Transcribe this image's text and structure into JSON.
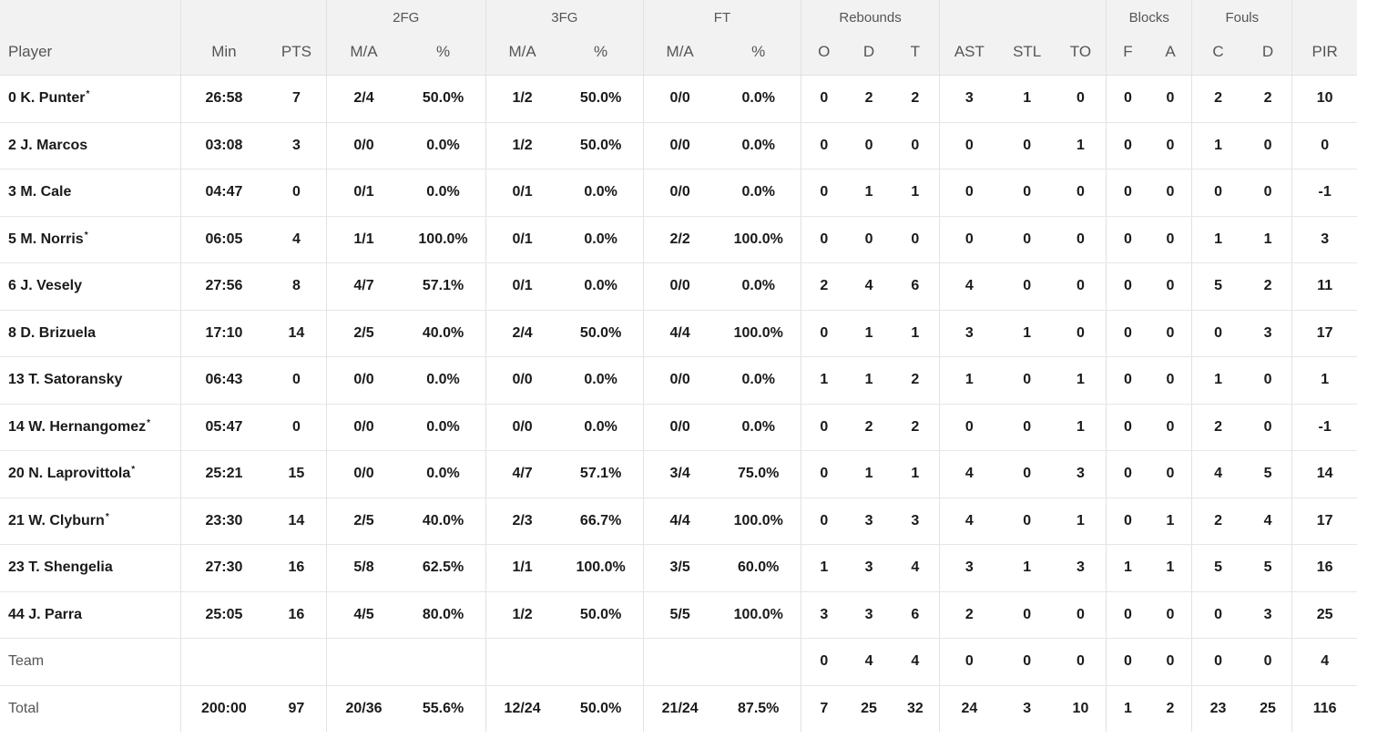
{
  "header": {
    "groups": {
      "fg2": "2FG",
      "fg3": "3FG",
      "ft": "FT",
      "rebounds": "Rebounds",
      "blocks": "Blocks",
      "fouls": "Fouls"
    },
    "columns": [
      "Player",
      "Min",
      "PTS",
      "M/A",
      "%",
      "M/A",
      "%",
      "M/A",
      "%",
      "O",
      "D",
      "T",
      "AST",
      "STL",
      "TO",
      "F",
      "A",
      "C",
      "D",
      "PIR"
    ]
  },
  "starter_mark": "*",
  "rows": [
    {
      "num": "0",
      "name": "K. Punter",
      "starter": true,
      "cells": [
        "26:58",
        "7",
        "2/4",
        "50.0%",
        "1/2",
        "50.0%",
        "0/0",
        "0.0%",
        "0",
        "2",
        "2",
        "3",
        "1",
        "0",
        "0",
        "0",
        "2",
        "2",
        "10"
      ]
    },
    {
      "num": "2",
      "name": "J. Marcos",
      "starter": false,
      "cells": [
        "03:08",
        "3",
        "0/0",
        "0.0%",
        "1/2",
        "50.0%",
        "0/0",
        "0.0%",
        "0",
        "0",
        "0",
        "0",
        "0",
        "1",
        "0",
        "0",
        "1",
        "0",
        "0"
      ]
    },
    {
      "num": "3",
      "name": "M. Cale",
      "starter": false,
      "cells": [
        "04:47",
        "0",
        "0/1",
        "0.0%",
        "0/1",
        "0.0%",
        "0/0",
        "0.0%",
        "0",
        "1",
        "1",
        "0",
        "0",
        "0",
        "0",
        "0",
        "0",
        "0",
        "-1"
      ]
    },
    {
      "num": "5",
      "name": "M. Norris",
      "starter": true,
      "cells": [
        "06:05",
        "4",
        "1/1",
        "100.0%",
        "0/1",
        "0.0%",
        "2/2",
        "100.0%",
        "0",
        "0",
        "0",
        "0",
        "0",
        "0",
        "0",
        "0",
        "1",
        "1",
        "3"
      ]
    },
    {
      "num": "6",
      "name": "J. Vesely",
      "starter": false,
      "cells": [
        "27:56",
        "8",
        "4/7",
        "57.1%",
        "0/1",
        "0.0%",
        "0/0",
        "0.0%",
        "2",
        "4",
        "6",
        "4",
        "0",
        "0",
        "0",
        "0",
        "5",
        "2",
        "11"
      ]
    },
    {
      "num": "8",
      "name": "D. Brizuela",
      "starter": false,
      "cells": [
        "17:10",
        "14",
        "2/5",
        "40.0%",
        "2/4",
        "50.0%",
        "4/4",
        "100.0%",
        "0",
        "1",
        "1",
        "3",
        "1",
        "0",
        "0",
        "0",
        "0",
        "3",
        "17"
      ]
    },
    {
      "num": "13",
      "name": "T. Satoransky",
      "starter": false,
      "cells": [
        "06:43",
        "0",
        "0/0",
        "0.0%",
        "0/0",
        "0.0%",
        "0/0",
        "0.0%",
        "1",
        "1",
        "2",
        "1",
        "0",
        "1",
        "0",
        "0",
        "1",
        "0",
        "1"
      ]
    },
    {
      "num": "14",
      "name": "W. Hernangomez",
      "starter": true,
      "cells": [
        "05:47",
        "0",
        "0/0",
        "0.0%",
        "0/0",
        "0.0%",
        "0/0",
        "0.0%",
        "0",
        "2",
        "2",
        "0",
        "0",
        "1",
        "0",
        "0",
        "2",
        "0",
        "-1"
      ]
    },
    {
      "num": "20",
      "name": "N. Laprovittola",
      "starter": true,
      "cells": [
        "25:21",
        "15",
        "0/0",
        "0.0%",
        "4/7",
        "57.1%",
        "3/4",
        "75.0%",
        "0",
        "1",
        "1",
        "4",
        "0",
        "3",
        "0",
        "0",
        "4",
        "5",
        "14"
      ]
    },
    {
      "num": "21",
      "name": "W. Clyburn",
      "starter": true,
      "cells": [
        "23:30",
        "14",
        "2/5",
        "40.0%",
        "2/3",
        "66.7%",
        "4/4",
        "100.0%",
        "0",
        "3",
        "3",
        "4",
        "0",
        "1",
        "0",
        "1",
        "2",
        "4",
        "17"
      ]
    },
    {
      "num": "23",
      "name": "T. Shengelia",
      "starter": false,
      "cells": [
        "27:30",
        "16",
        "5/8",
        "62.5%",
        "1/1",
        "100.0%",
        "3/5",
        "60.0%",
        "1",
        "3",
        "4",
        "3",
        "1",
        "3",
        "1",
        "1",
        "5",
        "5",
        "16"
      ]
    },
    {
      "num": "44",
      "name": "J. Parra",
      "starter": false,
      "cells": [
        "25:05",
        "16",
        "4/5",
        "80.0%",
        "1/2",
        "50.0%",
        "5/5",
        "100.0%",
        "3",
        "3",
        "6",
        "2",
        "0",
        "0",
        "0",
        "0",
        "0",
        "3",
        "25"
      ]
    }
  ],
  "team_row": {
    "label": "Team",
    "cells": [
      "",
      "",
      "",
      "",
      "",
      "",
      "",
      "",
      "0",
      "4",
      "4",
      "0",
      "0",
      "0",
      "0",
      "0",
      "0",
      "0",
      "4"
    ]
  },
  "total_row": {
    "label": "Total",
    "cells": [
      "200:00",
      "97",
      "20/36",
      "55.6%",
      "12/24",
      "50.0%",
      "21/24",
      "87.5%",
      "7",
      "25",
      "32",
      "24",
      "3",
      "10",
      "1",
      "2",
      "23",
      "25",
      "116"
    ]
  }
}
